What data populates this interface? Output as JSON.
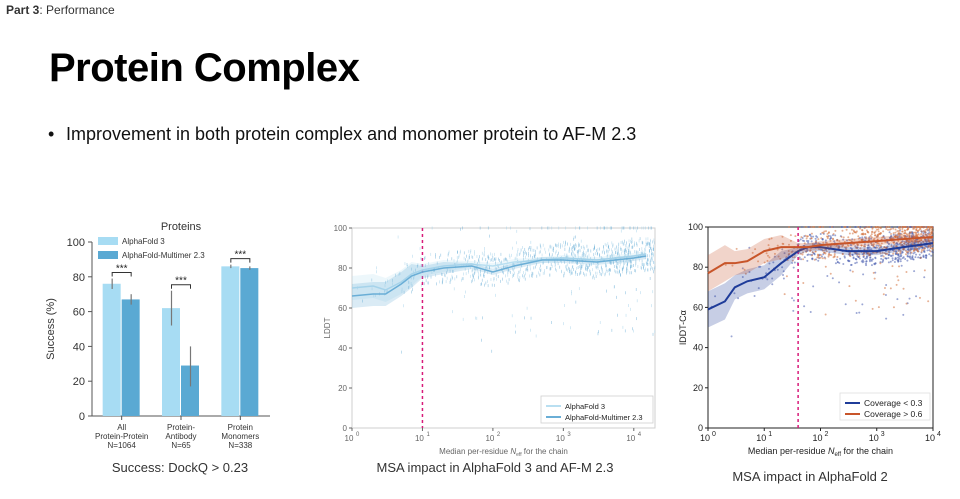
{
  "header": {
    "part_label": "Part 3",
    "part_title": ": Performance"
  },
  "slide": {
    "title": "Protein Complex",
    "bullet": "Improvement in both protein complex and monomer protein to AF-M 2.3"
  },
  "captions": {
    "chart1": "Success: DockQ > 0.23",
    "chart2": "MSA impact in AlphaFold 3 and AF-M 2.3",
    "chart3": "MSA impact in AlphaFold 2"
  },
  "chart_data": [
    {
      "type": "bar",
      "title": "Proteins",
      "ylabel": "Success (%)",
      "ylim": [
        0,
        100
      ],
      "yticks": [
        "0",
        "20",
        "40",
        "60",
        "80",
        "100"
      ],
      "categories": [
        [
          "All",
          "Protein-Protein",
          "N=1064"
        ],
        [
          "Protein-",
          "Antibody",
          "N=65"
        ],
        [
          "Protein",
          "Monomers",
          "N=338"
        ]
      ],
      "series": [
        {
          "name": "AlphaFold 3",
          "values": [
            76,
            62,
            86
          ],
          "err_low": [
            73,
            52,
            85
          ],
          "err_high": [
            79,
            72,
            87
          ],
          "color": "#a7dcf3"
        },
        {
          "name": "AlphaFold-Multimer 2.3",
          "values": [
            67,
            29,
            85
          ],
          "err_low": [
            64,
            17,
            84
          ],
          "err_high": [
            70,
            40,
            86
          ],
          "color": "#5aa9d3"
        }
      ],
      "significance": [
        "***",
        "***",
        "***"
      ],
      "legend": "top-left"
    },
    {
      "type": "line",
      "xlabel": "Median per-residue N",
      "xlabel_sub": "eff",
      "xlabel_tail": " for the chain",
      "ylabel": "LDDT",
      "xscale": "log",
      "xlim": [
        1,
        20000
      ],
      "ylim": [
        0,
        100
      ],
      "xtick_exponents": [
        "0",
        "1",
        "2",
        "3",
        "4"
      ],
      "yticks": [
        "0",
        "20",
        "40",
        "60",
        "80",
        "100"
      ],
      "vline_x": 10,
      "series": [
        {
          "name": "AlphaFold 3",
          "color": "#b9dff1",
          "x": [
            1,
            2,
            3,
            5,
            7,
            10,
            20,
            50,
            100,
            200,
            500,
            1000,
            3000,
            10000,
            15000
          ],
          "y": [
            70,
            71,
            69,
            73,
            77,
            79,
            81,
            82,
            81,
            83,
            84,
            85,
            84,
            86,
            87
          ]
        },
        {
          "name": "AlphaFold-Multimer 2.3",
          "color": "#6aaed6",
          "x": [
            1,
            2,
            3,
            5,
            7,
            10,
            20,
            50,
            100,
            200,
            500,
            1000,
            3000,
            10000,
            15000
          ],
          "y": [
            66,
            67,
            67,
            72,
            76,
            78,
            80,
            81,
            78,
            81,
            84,
            84,
            83,
            85,
            86
          ]
        }
      ],
      "legend": "bottom-right"
    },
    {
      "type": "line",
      "xlabel": "Median per-residue N",
      "xlabel_sub": "eff",
      "xlabel_tail": " for the chain",
      "ylabel": "lDDT-Cα",
      "xscale": "log",
      "xlim": [
        1,
        10000
      ],
      "ylim": [
        0,
        100
      ],
      "xtick_exponents": [
        "0",
        "1",
        "2",
        "3",
        "4"
      ],
      "yticks": [
        "0",
        "20",
        "40",
        "60",
        "80",
        "100"
      ],
      "vline_x": 40,
      "series": [
        {
          "name": "Coverage < 0.3",
          "color": "#1f3c99",
          "x": [
            1,
            2,
            3,
            5,
            10,
            20,
            40,
            60,
            100,
            300,
            1000,
            3000,
            10000
          ],
          "y": [
            59,
            63,
            70,
            73,
            75,
            82,
            88,
            90,
            90,
            88,
            88,
            90,
            92
          ]
        },
        {
          "name": "Coverage > 0.6",
          "color": "#c8552a",
          "x": [
            1,
            2,
            3,
            5,
            10,
            20,
            40,
            60,
            100,
            300,
            1000,
            3000,
            10000
          ],
          "y": [
            77,
            82,
            82,
            83,
            88,
            90,
            90,
            90,
            91,
            92,
            93,
            94,
            95
          ]
        }
      ],
      "legend": "bottom-right"
    }
  ]
}
